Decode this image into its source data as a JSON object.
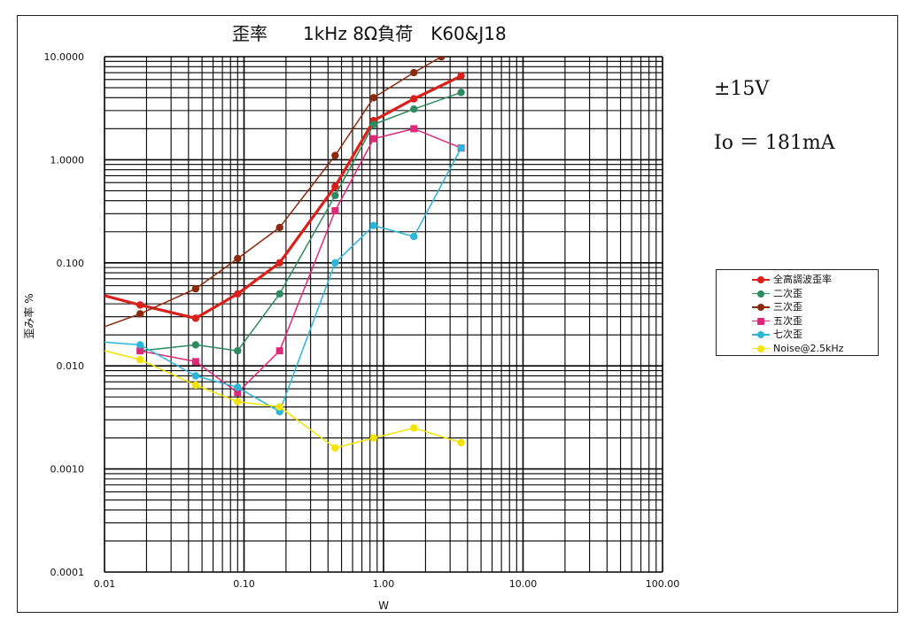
{
  "chart_data": {
    "type": "line",
    "title": "歪率　　1kHz 8Ω負荷　K60&J18",
    "xlabel": "W",
    "ylabel": "歪み率 %",
    "x_scale": "log",
    "y_scale": "log",
    "xlim": [
      0.01,
      100
    ],
    "ylim": [
      0.0001,
      10
    ],
    "x_ticks": [
      "0.01",
      "0.10",
      "1.00",
      "10.00",
      "100.00"
    ],
    "y_ticks": [
      "0.0001",
      "0.0010",
      "0.010",
      "0.100",
      "1.0000",
      "10.0000"
    ],
    "grid": true,
    "legend_position": "right",
    "annotations": [
      "±15V",
      "Io ＝ 181mA"
    ],
    "series": [
      {
        "name": "全高調波歪率",
        "color": "#d9201a",
        "marker": "circle",
        "width": 3.2,
        "x": [
          0.01,
          0.018,
          0.045,
          0.09,
          0.18,
          0.45,
          0.85,
          1.65,
          3.6
        ],
        "y": [
          0.048,
          0.039,
          0.029,
          0.05,
          0.1,
          0.55,
          2.4,
          3.9,
          6.5
        ]
      },
      {
        "name": "二次歪",
        "color": "#2e8b60",
        "marker": "circle",
        "width": 1.5,
        "x": [
          0.018,
          0.045,
          0.09,
          0.18,
          0.45,
          0.85,
          1.65,
          3.6
        ],
        "y": [
          0.014,
          0.016,
          0.014,
          0.05,
          0.45,
          2.2,
          3.1,
          4.5
        ]
      },
      {
        "name": "三次歪",
        "color": "#8b2a0c",
        "marker": "circle",
        "width": 1.5,
        "x": [
          0.01,
          0.018,
          0.045,
          0.09,
          0.18,
          0.45,
          0.85,
          1.65,
          2.6
        ],
        "y": [
          0.024,
          0.032,
          0.056,
          0.11,
          0.22,
          1.1,
          4.0,
          7.0,
          10.0
        ]
      },
      {
        "name": "五次歪",
        "color": "#e0287a",
        "marker": "square",
        "width": 1.5,
        "x": [
          0.018,
          0.045,
          0.09,
          0.18,
          0.45,
          0.85,
          1.65,
          3.6
        ],
        "y": [
          0.014,
          0.011,
          0.0055,
          0.014,
          0.32,
          1.6,
          2.0,
          1.3
        ]
      },
      {
        "name": "七次歪",
        "color": "#29b6d8",
        "marker": "circle",
        "width": 1.5,
        "x": [
          0.01,
          0.018,
          0.045,
          0.09,
          0.18,
          0.45,
          0.85,
          1.65,
          3.6
        ],
        "y": [
          0.017,
          0.016,
          0.008,
          0.0062,
          0.0036,
          0.1,
          0.23,
          0.18,
          1.3
        ]
      },
      {
        "name": "Noise@2.5kHz",
        "color": "#f2e400",
        "marker": "circle",
        "width": 1.5,
        "x": [
          0.01,
          0.018,
          0.045,
          0.09,
          0.18,
          0.45,
          0.85,
          1.65,
          3.6
        ],
        "y": [
          0.014,
          0.0115,
          0.0065,
          0.0045,
          0.004,
          0.0016,
          0.002,
          0.0025,
          0.0018
        ]
      }
    ]
  }
}
